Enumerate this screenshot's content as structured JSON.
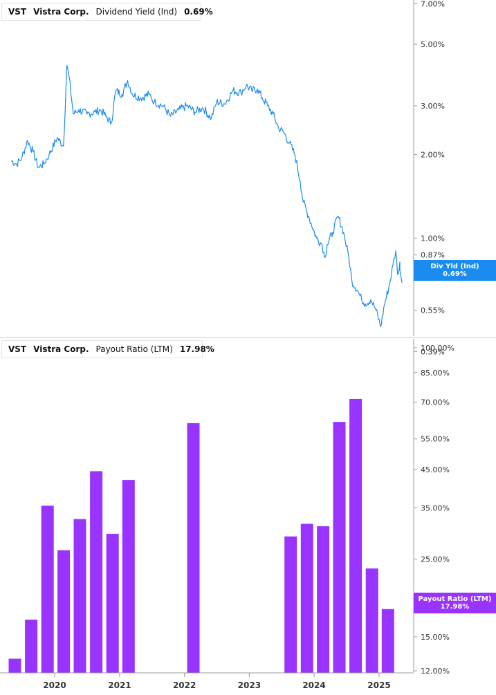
{
  "colors": {
    "yield": "#1a8cf0",
    "payout": "#9933ff",
    "axis": "#999999",
    "grid": "#cccccc"
  },
  "yield_panel": {
    "ticker": "VST",
    "company": "Vistra Corp.",
    "metric": "Dividend Yield (Ind)",
    "value": "0.69%",
    "badge_label": "Div Yld (Ind)",
    "badge_value": "0.69%"
  },
  "payout_panel": {
    "ticker": "VST",
    "company": "Vistra Corp.",
    "metric": "Payout Ratio (LTM)",
    "value": "17.98%",
    "badge_label": "Payout Ratio (LTM)",
    "badge_value": "17.98%"
  },
  "chart_data": [
    {
      "type": "line",
      "title": "Dividend Yield (Ind)",
      "series_name": "Dividend Yield (Ind)",
      "y_scale": "log",
      "y_unit": "%",
      "ylim": [
        0.39,
        7.5
      ],
      "y_ticks": [
        7.0,
        5.0,
        3.0,
        2.0,
        1.0,
        0.87,
        0.55,
        0.39
      ],
      "y_tick_labels": [
        "7.00%",
        "5.00%",
        "3.00%",
        "2.00%",
        "1.00%",
        "0.87%",
        "0.55%",
        "0.39%"
      ],
      "x_ticks": [
        "2020",
        "2021",
        "2022",
        "2023",
        "2024",
        "2025"
      ],
      "points": [
        [
          "2019-05-01",
          1.9
        ],
        [
          "2019-06-01",
          1.85
        ],
        [
          "2019-07-01",
          1.95
        ],
        [
          "2019-08-01",
          2.25
        ],
        [
          "2019-09-01",
          2.05
        ],
        [
          "2019-10-01",
          1.8
        ],
        [
          "2019-11-01",
          1.85
        ],
        [
          "2019-12-01",
          2.0
        ],
        [
          "2020-01-15",
          2.3
        ],
        [
          "2020-02-20",
          2.15
        ],
        [
          "2020-03-10",
          4.2
        ],
        [
          "2020-03-23",
          3.8
        ],
        [
          "2020-04-15",
          2.8
        ],
        [
          "2020-05-15",
          2.9
        ],
        [
          "2020-07-01",
          2.8
        ],
        [
          "2020-08-15",
          2.85
        ],
        [
          "2020-09-15",
          2.9
        ],
        [
          "2020-10-15",
          2.75
        ],
        [
          "2020-11-15",
          2.6
        ],
        [
          "2020-12-10",
          3.4
        ],
        [
          "2021-01-15",
          3.3
        ],
        [
          "2021-02-15",
          3.7
        ],
        [
          "2021-03-15",
          3.3
        ],
        [
          "2021-05-01",
          3.2
        ],
        [
          "2021-06-15",
          3.3
        ],
        [
          "2021-07-15",
          3.1
        ],
        [
          "2021-09-01",
          3.0
        ],
        [
          "2021-10-15",
          2.75
        ],
        [
          "2021-12-01",
          2.9
        ],
        [
          "2022-01-15",
          3.0
        ],
        [
          "2022-03-01",
          2.85
        ],
        [
          "2022-04-15",
          2.95
        ],
        [
          "2022-06-01",
          2.7
        ],
        [
          "2022-07-01",
          3.1
        ],
        [
          "2022-08-15",
          3.05
        ],
        [
          "2022-10-01",
          3.4
        ],
        [
          "2022-11-15",
          3.35
        ],
        [
          "2022-12-15",
          3.55
        ],
        [
          "2023-01-15",
          3.4
        ],
        [
          "2023-02-15",
          3.45
        ],
        [
          "2023-03-15",
          3.2
        ],
        [
          "2023-04-15",
          3.0
        ],
        [
          "2023-05-15",
          2.8
        ],
        [
          "2023-06-15",
          2.5
        ],
        [
          "2023-07-15",
          2.4
        ],
        [
          "2023-08-15",
          2.2
        ],
        [
          "2023-09-15",
          2.0
        ],
        [
          "2023-10-15",
          1.6
        ],
        [
          "2023-11-01",
          1.35
        ],
        [
          "2023-12-01",
          1.2
        ],
        [
          "2024-01-15",
          1.0
        ],
        [
          "2024-02-15",
          0.95
        ],
        [
          "2024-03-01",
          0.85
        ],
        [
          "2024-03-15",
          0.95
        ],
        [
          "2024-04-15",
          1.05
        ],
        [
          "2024-05-15",
          1.2
        ],
        [
          "2024-06-15",
          1.05
        ],
        [
          "2024-07-15",
          0.85
        ],
        [
          "2024-08-01",
          0.7
        ],
        [
          "2024-09-01",
          0.65
        ],
        [
          "2024-09-25",
          0.6
        ],
        [
          "2024-10-15",
          0.58
        ],
        [
          "2024-11-15",
          0.6
        ],
        [
          "2024-12-15",
          0.55
        ],
        [
          "2025-01-10",
          0.48
        ],
        [
          "2025-02-01",
          0.58
        ],
        [
          "2025-03-01",
          0.68
        ],
        [
          "2025-03-20",
          0.8
        ],
        [
          "2025-04-05",
          0.9
        ],
        [
          "2025-04-15",
          0.74
        ],
        [
          "2025-05-01",
          0.82
        ],
        [
          "2025-05-10",
          0.69
        ]
      ]
    },
    {
      "type": "bar",
      "title": "Payout Ratio (LTM)",
      "series_name": "Payout Ratio (LTM)",
      "y_scale": "log",
      "y_unit": "%",
      "ylim": [
        11.5,
        100
      ],
      "y_ticks": [
        100,
        85,
        70,
        55,
        45,
        35,
        25,
        15,
        12
      ],
      "y_tick_labels": [
        "100.00%",
        "85.00%",
        "70.00%",
        "55.00%",
        "45.00%",
        "35.00%",
        "25.00%",
        "15.00%",
        "12.00%"
      ],
      "x_ticks": [
        "2020",
        "2021",
        "2022",
        "2023",
        "2024",
        "2025"
      ],
      "bars": [
        [
          "2019-06-30",
          13.0
        ],
        [
          "2019-09-30",
          16.8
        ],
        [
          "2019-12-31",
          35.5
        ],
        [
          "2020-03-31",
          26.5
        ],
        [
          "2020-06-30",
          32.5
        ],
        [
          "2020-09-30",
          44.5
        ],
        [
          "2020-12-31",
          29.5
        ],
        [
          "2021-03-31",
          42.0
        ],
        [
          "2022-03-31",
          61.0
        ],
        [
          "2023-09-30",
          29.0
        ],
        [
          "2023-12-31",
          31.5
        ],
        [
          "2024-03-31",
          31.0
        ],
        [
          "2024-06-30",
          61.5
        ],
        [
          "2024-09-30",
          71.5
        ],
        [
          "2024-12-31",
          23.5
        ],
        [
          "2025-03-31",
          18.0
        ]
      ]
    }
  ]
}
